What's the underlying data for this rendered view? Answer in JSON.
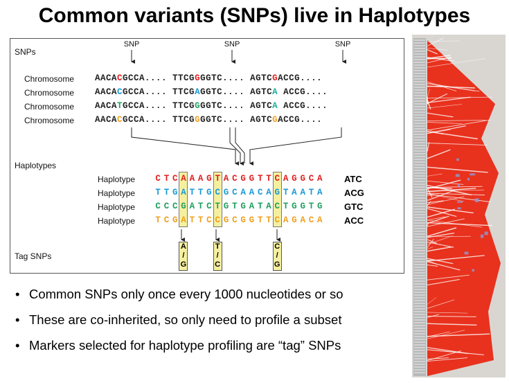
{
  "title": "Common variants (SNPs) live in Haplotypes",
  "figure": {
    "snps_label": "SNPs",
    "snp_marker_label": "SNP",
    "chromosome_label": "Chromosome",
    "chromosomes": [
      [
        "AACA",
        "C",
        "GCCA.... TTCG",
        "G",
        "GGTC.... AGTC",
        "G",
        "ACCG...."
      ],
      [
        "AACA",
        "C",
        "GCCA.... TTCG",
        "A",
        "GGTC.... AGTC",
        "A",
        " ACCG...."
      ],
      [
        "AACA",
        "T",
        "GCCA.... TTCG",
        "G",
        "GGTC.... AGTC",
        "A",
        " ACCG...."
      ],
      [
        "AACA",
        "C",
        "GCCA.... TTCG",
        "G",
        "GGTC.... AGTC",
        "G",
        "ACCG...."
      ]
    ],
    "chromosome_allele_colors": [
      [
        "#e02020",
        "#e02020",
        "#e02020"
      ],
      [
        "#1a9ad6",
        "#1a9ad6",
        "#1ab0a0"
      ],
      [
        "#20a060",
        "#20a060",
        "#1ab0a0"
      ],
      [
        "#f0a020",
        "#f0a020",
        "#f0a020"
      ]
    ],
    "haplotypes_label": "Haplotypes",
    "haplotype_label": "Haplotype",
    "haplotypes": [
      {
        "seq": "CTCAAAGTACGGTTCAGGCA",
        "code": "ATC",
        "color": "#e02020"
      },
      {
        "seq": "TTGATTGCGCAACAGTAATA",
        "code": "ACG",
        "color": "#1a9ad6"
      },
      {
        "seq": "CCCGATCTGTGATACTGGTG",
        "code": "GTC",
        "color": "#20a060"
      },
      {
        "seq": "TCGATTCCGCGGTTCAGACA",
        "code": "ACC",
        "color": "#f0a020"
      }
    ],
    "highlight_columns": [
      3,
      7,
      14
    ],
    "tag_snps_label": "Tag SNPs",
    "tag_snps": [
      {
        "top": "A",
        "mid": "/",
        "bottom": "G"
      },
      {
        "top": "T",
        "mid": "/",
        "bottom": "C"
      },
      {
        "top": "C",
        "mid": "/",
        "bottom": "G"
      }
    ]
  },
  "bullets": [
    "Common SNPs only once every 1000 nucleotides or so",
    "These are co-inherited, so only need to profile a subset",
    "Markers selected for haplotype profiling are “tag” SNPs"
  ],
  "colors": {
    "red": "#e02020",
    "blue": "#1a9ad6",
    "green": "#20a060",
    "orange": "#f0a020",
    "highlight": "#f5f0a0",
    "ld_red": "#e8321e"
  }
}
